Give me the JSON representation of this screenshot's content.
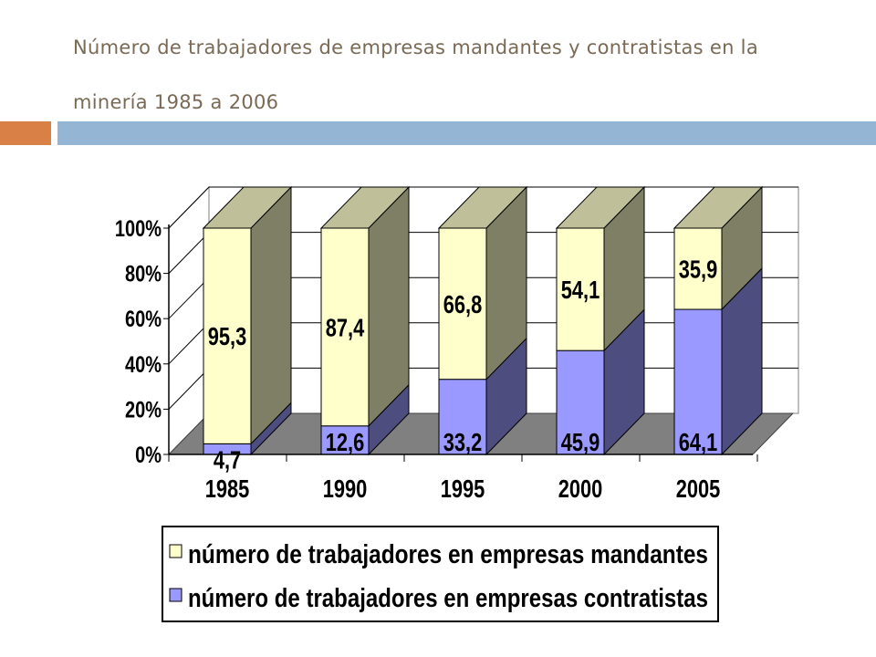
{
  "slide": {
    "title": "Número de trabajadores de empresas mandantes y contratistas en la minería 1985 a 2006"
  },
  "colors": {
    "accent_orange": "#d98046",
    "accent_blue": "#94b5d3",
    "mandantes_front": "#ffffcc",
    "mandantes_top": "#bfbf99",
    "mandantes_side": "#7f7f66",
    "contratistas_front": "#9999ff",
    "contratistas_side": "#4d4d80",
    "floor": "#808080"
  },
  "chart_data": {
    "type": "bar",
    "stacked": "percent",
    "three_d": true,
    "categories": [
      "1985",
      "1990",
      "1995",
      "2000",
      "2005"
    ],
    "series": [
      {
        "name": "número de trabajadores en empresas contratistas",
        "values": [
          4.7,
          12.6,
          33.2,
          45.9,
          64.1
        ],
        "labels": [
          "4,7",
          "12,6",
          "33,2",
          "45,9",
          "64,1"
        ]
      },
      {
        "name": "número de trabajadores en empresas mandantes",
        "values": [
          95.3,
          87.4,
          66.8,
          54.1,
          35.9
        ],
        "labels": [
          "95,3",
          "87,4",
          "66,8",
          "54,1",
          "35,9"
        ]
      }
    ],
    "y_ticks": [
      "0%",
      "20%",
      "40%",
      "60%",
      "80%",
      "100%"
    ],
    "ylim": [
      0,
      100
    ],
    "grid": true,
    "legend_position": "bottom",
    "legend": [
      "número de trabajadores en empresas mandantes",
      "número de trabajadores en empresas contratistas"
    ]
  }
}
